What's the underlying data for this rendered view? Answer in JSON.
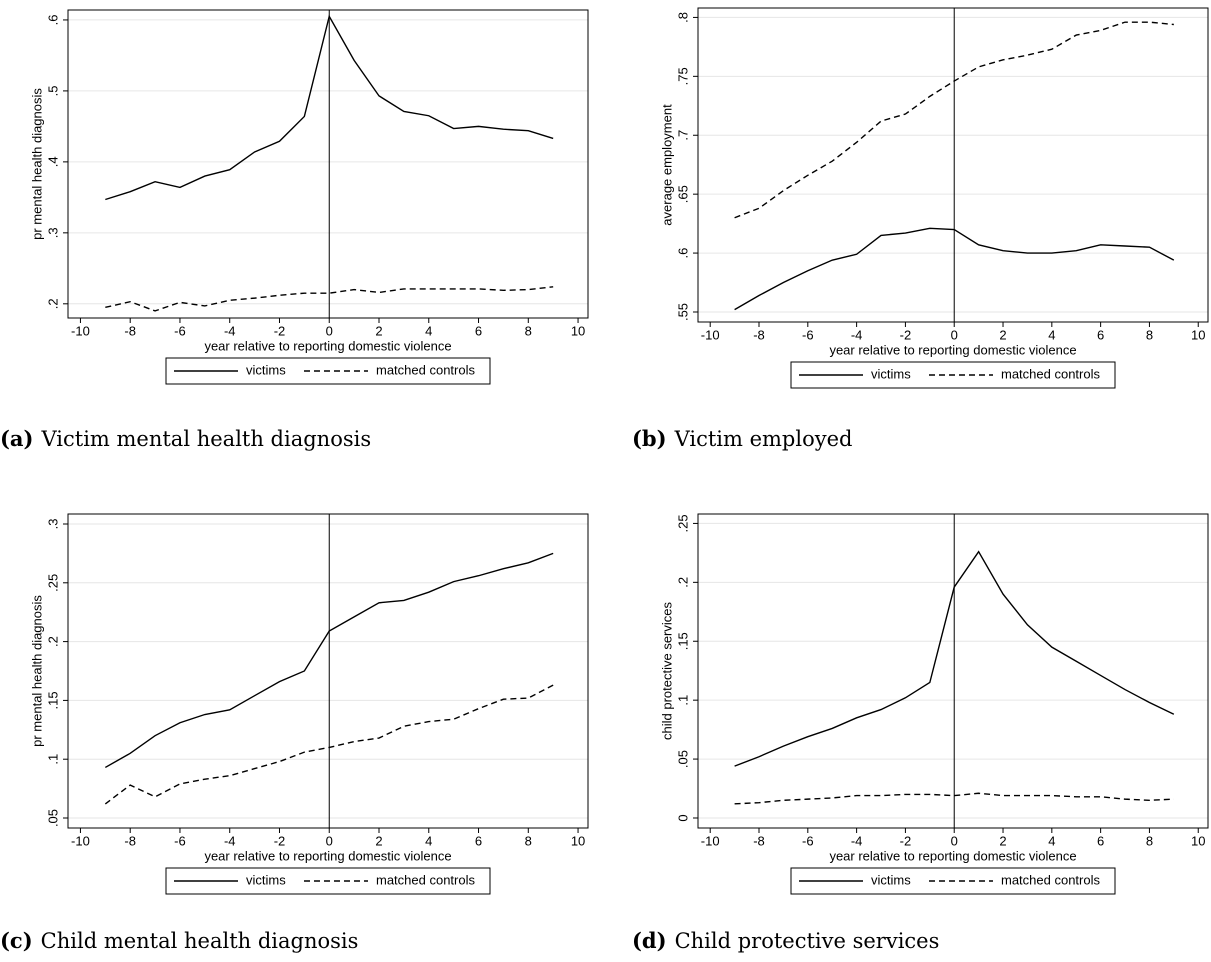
{
  "chart_data": [
    {
      "type": "line",
      "caption_label": "(a)",
      "caption": "Victim mental health diagnosis",
      "xlabel": "year relative to reporting domestic violence",
      "ylabel": "pr mental health diagnosis",
      "x": [
        -9,
        -8,
        -7,
        -6,
        -5,
        -4,
        -3,
        -2,
        -1,
        0,
        1,
        2,
        3,
        4,
        5,
        6,
        7,
        8,
        9
      ],
      "series": [
        {
          "name": "victims",
          "color": "#000000",
          "style": "solid",
          "values": [
            0.347,
            0.358,
            0.372,
            0.364,
            0.38,
            0.389,
            0.414,
            0.429,
            0.464,
            0.605,
            0.543,
            0.493,
            0.471,
            0.465,
            0.447,
            0.45,
            0.446,
            0.444,
            0.433
          ]
        },
        {
          "name": "matched controls",
          "color": "#000000",
          "style": "dashed",
          "values": [
            0.195,
            0.203,
            0.19,
            0.202,
            0.197,
            0.205,
            0.208,
            0.212,
            0.215,
            0.215,
            0.22,
            0.216,
            0.221,
            0.221,
            0.221,
            0.221,
            0.219,
            0.22,
            0.224
          ]
        }
      ],
      "vline": 0,
      "xlim": [
        -10.5,
        10.4
      ],
      "xticks": [
        -10,
        -8,
        -6,
        -4,
        -2,
        0,
        2,
        4,
        6,
        8,
        10
      ],
      "ylim": [
        0.18,
        0.614
      ],
      "yticks": [
        {
          "value": 0.2,
          "label": ".2"
        },
        {
          "value": 0.3,
          "label": ".3"
        },
        {
          "value": 0.4,
          "label": ".4"
        },
        {
          "value": 0.5,
          "label": ".5"
        },
        {
          "value": 0.6,
          "label": ".6"
        }
      ],
      "grid": true
    },
    {
      "type": "line",
      "caption_label": "(b)",
      "caption": "Victim employed",
      "xlabel": "year relative to reporting domestic violence",
      "ylabel": "average employment",
      "x": [
        -9,
        -8,
        -7,
        -6,
        -5,
        -4,
        -3,
        -2,
        -1,
        0,
        1,
        2,
        3,
        4,
        5,
        6,
        7,
        8,
        9
      ],
      "series": [
        {
          "name": "victims",
          "color": "#000000",
          "style": "solid",
          "values": [
            0.552,
            0.564,
            0.575,
            0.585,
            0.594,
            0.599,
            0.615,
            0.617,
            0.621,
            0.62,
            0.607,
            0.602,
            0.6,
            0.6,
            0.602,
            0.607,
            0.606,
            0.605,
            0.594
          ]
        },
        {
          "name": "matched controls",
          "color": "#000000",
          "style": "dashed",
          "values": [
            0.63,
            0.638,
            0.653,
            0.666,
            0.678,
            0.694,
            0.712,
            0.718,
            0.733,
            0.746,
            0.758,
            0.764,
            0.768,
            0.773,
            0.785,
            0.789,
            0.796,
            0.796,
            0.794
          ]
        }
      ],
      "vline": 0,
      "xlim": [
        -10.5,
        10.4
      ],
      "xticks": [
        -10,
        -8,
        -6,
        -4,
        -2,
        0,
        2,
        4,
        6,
        8,
        10
      ],
      "ylim": [
        0.5415,
        0.808
      ],
      "yticks": [
        {
          "value": 0.55,
          "label": ".55"
        },
        {
          "value": 0.6,
          "label": ".6"
        },
        {
          "value": 0.65,
          "label": ".65"
        },
        {
          "value": 0.7,
          "label": ".7"
        },
        {
          "value": 0.75,
          "label": ".75"
        },
        {
          "value": 0.8,
          "label": ".8"
        }
      ],
      "grid": true
    },
    {
      "type": "line",
      "caption_label": "(c)",
      "caption": "Child mental health diagnosis",
      "xlabel": "year relative to reporting domestic violence",
      "ylabel": "pr mental health diagnosis",
      "x": [
        -9,
        -8,
        -7,
        -6,
        -5,
        -4,
        -3,
        -2,
        -1,
        0,
        1,
        2,
        3,
        4,
        5,
        6,
        7,
        8,
        9
      ],
      "series": [
        {
          "name": "victims",
          "color": "#000000",
          "style": "solid",
          "values": [
            0.093,
            0.105,
            0.12,
            0.131,
            0.138,
            0.142,
            0.154,
            0.166,
            0.175,
            0.209,
            0.221,
            0.233,
            0.235,
            0.242,
            0.251,
            0.256,
            0.262,
            0.267,
            0.275
          ]
        },
        {
          "name": "matched controls",
          "color": "#000000",
          "style": "dashed",
          "values": [
            0.062,
            0.078,
            0.068,
            0.079,
            0.083,
            0.086,
            0.092,
            0.098,
            0.106,
            0.11,
            0.115,
            0.118,
            0.128,
            0.132,
            0.134,
            0.143,
            0.151,
            0.152,
            0.163
          ]
        }
      ],
      "vline": 0,
      "xlim": [
        -10.5,
        10.4
      ],
      "xticks": [
        -10,
        -8,
        -6,
        -4,
        -2,
        0,
        2,
        4,
        6,
        8,
        10
      ],
      "ylim": [
        0.0415,
        0.3085
      ],
      "yticks": [
        {
          "value": 0.05,
          "label": ".05"
        },
        {
          "value": 0.1,
          "label": ".1"
        },
        {
          "value": 0.15,
          "label": ".15"
        },
        {
          "value": 0.2,
          "label": ".2"
        },
        {
          "value": 0.25,
          "label": ".25"
        },
        {
          "value": 0.3,
          "label": ".3"
        }
      ],
      "grid": true
    },
    {
      "type": "line",
      "caption_label": "(d)",
      "caption": "Child protective services",
      "xlabel": "year relative to reporting domestic violence",
      "ylabel": "child protective services",
      "x": [
        -9,
        -8,
        -7,
        -6,
        -5,
        -4,
        -3,
        -2,
        -1,
        0,
        1,
        2,
        3,
        4,
        5,
        6,
        7,
        8,
        9
      ],
      "series": [
        {
          "name": "victims",
          "color": "#000000",
          "style": "solid",
          "values": [
            0.044,
            0.052,
            0.061,
            0.069,
            0.076,
            0.085,
            0.092,
            0.102,
            0.115,
            0.196,
            0.226,
            0.19,
            0.164,
            0.145,
            0.133,
            0.121,
            0.109,
            0.098,
            0.088
          ]
        },
        {
          "name": "matched controls",
          "color": "#000000",
          "style": "dashed",
          "values": [
            0.012,
            0.013,
            0.015,
            0.016,
            0.017,
            0.019,
            0.019,
            0.02,
            0.02,
            0.019,
            0.021,
            0.019,
            0.019,
            0.019,
            0.018,
            0.018,
            0.016,
            0.015,
            0.016
          ]
        }
      ],
      "vline": 0,
      "xlim": [
        -10.5,
        10.4
      ],
      "xticks": [
        -10,
        -8,
        -6,
        -4,
        -2,
        0,
        2,
        4,
        6,
        8,
        10
      ],
      "ylim": [
        -0.0085,
        0.258
      ],
      "yticks": [
        0,
        {
          "value": 0.05,
          "label": ".05"
        },
        {
          "value": 0.1,
          "label": ".1"
        },
        {
          "value": 0.15,
          "label": ".15"
        },
        {
          "value": 0.2,
          "label": ".2"
        },
        {
          "value": 0.25,
          "label": ".25"
        }
      ],
      "grid": true
    }
  ]
}
